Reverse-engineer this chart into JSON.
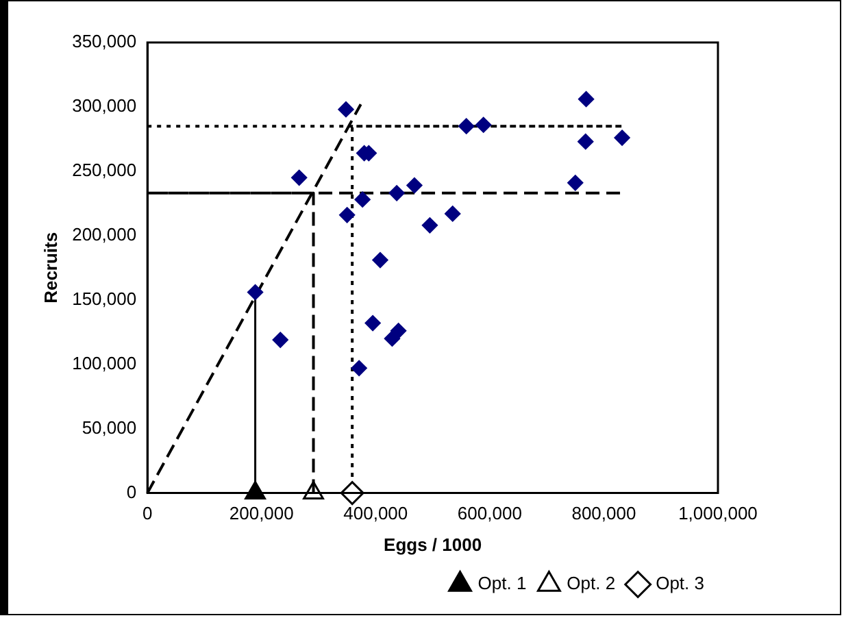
{
  "chart_data": {
    "type": "scatter",
    "xlabel": "Eggs / 1000",
    "ylabel": "Recruits",
    "xlim": [
      0,
      1000000
    ],
    "xticks": [
      0,
      {
        "value": 200000,
        "label": "200,000"
      },
      {
        "value": 400000,
        "label": "400,000"
      },
      {
        "value": 600000,
        "label": "600,000"
      },
      {
        "value": 800000,
        "label": "800,000"
      },
      {
        "value": 1000000,
        "label": "1,000,000"
      }
    ],
    "ylim": [
      0,
      350000
    ],
    "yticks": [
      0,
      {
        "value": 50000,
        "label": "50,000"
      },
      {
        "value": 100000,
        "label": "100,000"
      },
      {
        "value": 150000,
        "label": "150,000"
      },
      {
        "value": 200000,
        "label": "200,000"
      },
      {
        "value": 250000,
        "label": "250,000"
      },
      {
        "value": 300000,
        "label": "300,000"
      },
      {
        "value": 350000,
        "label": "350,000"
      }
    ],
    "grid": false,
    "legend": "bottom right",
    "series": [
      {
        "type": "scatter",
        "color": "#000080",
        "marker": "diamond",
        "x": [
          189000,
          233000,
          266000,
          348000,
          350000,
          377000,
          380000,
          388000,
          371000,
          395000,
          408000,
          429000,
          440000,
          437000,
          468000,
          495000,
          535000,
          559000,
          589000,
          750000,
          769000,
          768000,
          832000
        ],
        "values": [
          156000,
          119000,
          245000,
          298000,
          216000,
          228000,
          264000,
          264000,
          97000,
          132000,
          181000,
          120000,
          126000,
          233000,
          239000,
          208000,
          217000,
          285000,
          286000,
          241000,
          306000,
          273000,
          276000
        ]
      },
      {
        "type": "line",
        "color": "#000000",
        "line_style": "dashed",
        "marker": "none",
        "x": [
          0,
          374000
        ],
        "values": [
          0,
          302000
        ]
      },
      {
        "type": "line",
        "color": "#000000",
        "line_style": "solid",
        "marker": "none",
        "x": [
          189000,
          189000
        ],
        "values": [
          0,
          156000
        ]
      },
      {
        "type": "line",
        "color": "#000000",
        "line_style": "dashed",
        "marker": "none",
        "x": [
          291000,
          291000,
          0,
          834000
        ],
        "values": [
          0,
          233000,
          233000,
          233000
        ]
      },
      {
        "type": "line",
        "color": "#000000",
        "line_style": "dotted",
        "marker": "none",
        "x": [
          0,
          834000,
          359000,
          359000
        ],
        "values": [
          285000,
          285000,
          285000,
          12000
        ]
      },
      {
        "type": "scatter",
        "name": "Opt. 1",
        "color": "#000000",
        "marker": "triangle",
        "x": [
          189000
        ],
        "values": [
          0
        ]
      },
      {
        "type": "scatter",
        "name": "Opt. 2",
        "color": "#000000",
        "marker": "triangle",
        "x": [
          291000
        ],
        "values": [
          0
        ]
      },
      {
        "type": "scatter",
        "name": "Opt. 3",
        "color": "#000000",
        "marker": "diamond",
        "x": [
          359000
        ],
        "values": [
          0
        ]
      }
    ]
  }
}
